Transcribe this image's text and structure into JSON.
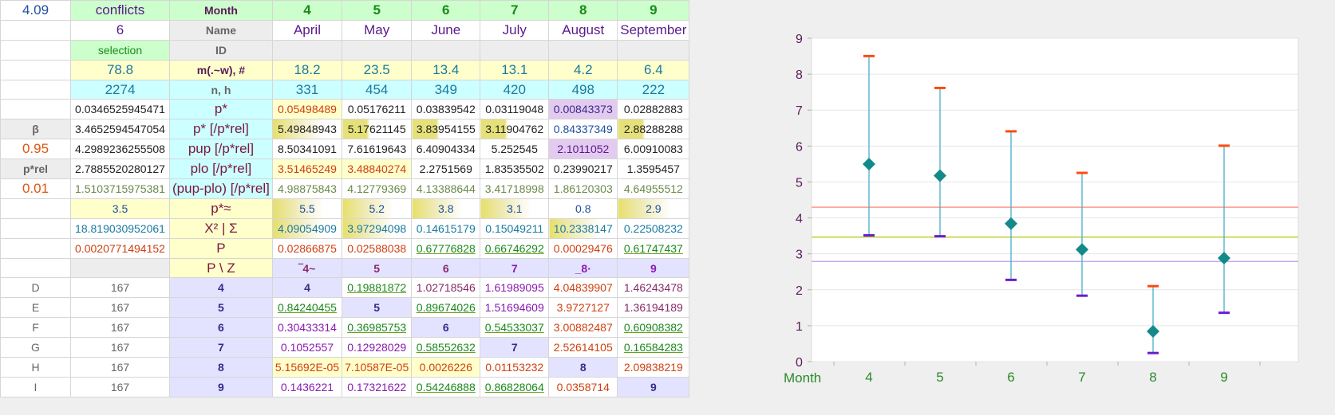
{
  "sheet": {
    "rows": [
      {
        "A": "4.09",
        "B": "conflicts",
        "C": "Month",
        "vals": [
          "4",
          "5",
          "6",
          "7",
          "8",
          "9"
        ]
      },
      {
        "A": "",
        "B": "6",
        "C": "Name",
        "vals": [
          "April",
          "May",
          "June",
          "July",
          "August",
          "September"
        ]
      },
      {
        "A": "",
        "B": "selection",
        "C": "ID",
        "vals": [
          "",
          "",
          "",
          "",
          "",
          ""
        ]
      },
      {
        "A": "",
        "B": "78.8",
        "C": "m(.~w), #",
        "vals": [
          "18.2",
          "23.5",
          "13.4",
          "13.1",
          "4.2",
          "6.4"
        ]
      },
      {
        "A": "",
        "B": "2274",
        "C": "n, h",
        "vals": [
          "331",
          "454",
          "349",
          "420",
          "498",
          "222"
        ]
      },
      {
        "A": "",
        "B": "0.0346525945471",
        "C": "p*",
        "vals": [
          "0.05498489",
          "0.05176211",
          "0.03839542",
          "0.03119048",
          "0.00843373",
          "0.02882883"
        ]
      },
      {
        "A": "β",
        "B": "3.4652594547054",
        "C": "p* [/p*rel]",
        "vals": [
          "5.49848943",
          "5.17621145",
          "3.83954155",
          "3.11904762",
          "0.84337349",
          "2.88288288"
        ]
      },
      {
        "A": "0.95",
        "B": "4.2989236255508",
        "C": "pup [/p*rel]",
        "vals": [
          "8.50341091",
          "7.61619643",
          "6.40904334",
          "5.252545",
          "2.1011052",
          "6.00910083"
        ]
      },
      {
        "A": "p*rel",
        "B": "2.7885520280127",
        "C": "plo [/p*rel]",
        "vals": [
          "3.51465249",
          "3.48840274",
          "2.2751569",
          "1.83535502",
          "0.23990217",
          "1.3595457"
        ]
      },
      {
        "A": "0.01",
        "B": "1.5103715975381",
        "C": "(pup-plo) [/p*rel]",
        "vals": [
          "4.98875843",
          "4.12779369",
          "4.13388644",
          "3.41718998",
          "1.86120303",
          "4.64955512"
        ]
      },
      {
        "A": "",
        "B": "3.5",
        "C": "p*≈",
        "vals": [
          "5.5",
          "5.2",
          "3.8",
          "3.1",
          "0.8",
          "2.9"
        ]
      },
      {
        "A": "",
        "B": "18.819030952061",
        "C": "X² | Σ",
        "vals": [
          "4.09054909",
          "3.97294098",
          "0.14615179",
          "0.15049211",
          "10.2338147",
          "0.22508232"
        ]
      },
      {
        "A": "",
        "B": "0.0020771494152",
        "C": "P",
        "vals": [
          "0.02866875",
          "0.02588038",
          "0.67776828",
          "0.66746292",
          "0.00029476",
          "0.61747437"
        ]
      },
      {
        "A": "",
        "B": "",
        "C": "P \\ Z",
        "vals": [
          "‾4~",
          "5",
          "6",
          "7",
          "_8·",
          "9"
        ]
      },
      {
        "A": "D",
        "B": "167",
        "C": "4",
        "vals": [
          "4",
          "0.19881872",
          "1.02718546",
          "1.61989095",
          "4.04839907",
          "1.46243478"
        ]
      },
      {
        "A": "E",
        "B": "167",
        "C": "5",
        "vals": [
          "0.84240455",
          "5",
          "0.89674026",
          "1.51694609",
          "3.9727127",
          "1.36194189"
        ]
      },
      {
        "A": "F",
        "B": "167",
        "C": "6",
        "vals": [
          "0.30433314",
          "0.36985753",
          "6",
          "0.54533037",
          "3.00882487",
          "0.60908382"
        ]
      },
      {
        "A": "G",
        "B": "167",
        "C": "7",
        "vals": [
          "0.1052557",
          "0.12928029",
          "0.58552632",
          "7",
          "2.52614105",
          "0.16584283"
        ]
      },
      {
        "A": "H",
        "B": "167",
        "C": "8",
        "vals": [
          "5.15692E-05",
          "7.10587E-05",
          "0.0026226",
          "0.01153232",
          "8",
          "2.09838219"
        ]
      },
      {
        "A": "I",
        "B": "167",
        "C": "9",
        "vals": [
          "0.1436221",
          "0.17321622",
          "0.54246888",
          "0.86828064",
          "0.0358714",
          "9"
        ]
      }
    ]
  },
  "colors": {
    "marker": "#138a8a",
    "upper": "#ff4a10",
    "lower": "#6a1ad0",
    "whisker": "#3aa8c8",
    "line_red": "#ff9a8a",
    "line_yellow": "#bcd02a",
    "line_purple": "#c8a8f0",
    "axis_text": "#5a1a5a",
    "x_text": "#2a8a2a"
  },
  "chart_data": {
    "type": "scatter",
    "xlabel": "Month",
    "categories": [
      "4",
      "5",
      "6",
      "7",
      "8",
      "9"
    ],
    "values": [
      5.49848943,
      5.17621145,
      3.83954155,
      3.11904762,
      0.84337349,
      2.88288288
    ],
    "upper": [
      8.50341091,
      7.61619643,
      6.40904334,
      5.252545,
      2.1011052,
      6.00910083
    ],
    "lower": [
      3.51465249,
      3.48840274,
      2.2751569,
      1.83535502,
      0.23990217,
      1.3595457
    ],
    "hlines": [
      4.2989236255508,
      3.4652594547054,
      2.7885520280127
    ],
    "yticks": [
      "0",
      "1",
      "2",
      "3",
      "4",
      "5",
      "6",
      "7",
      "8",
      "9"
    ],
    "ylim": [
      0,
      9
    ],
    "grid": true
  }
}
